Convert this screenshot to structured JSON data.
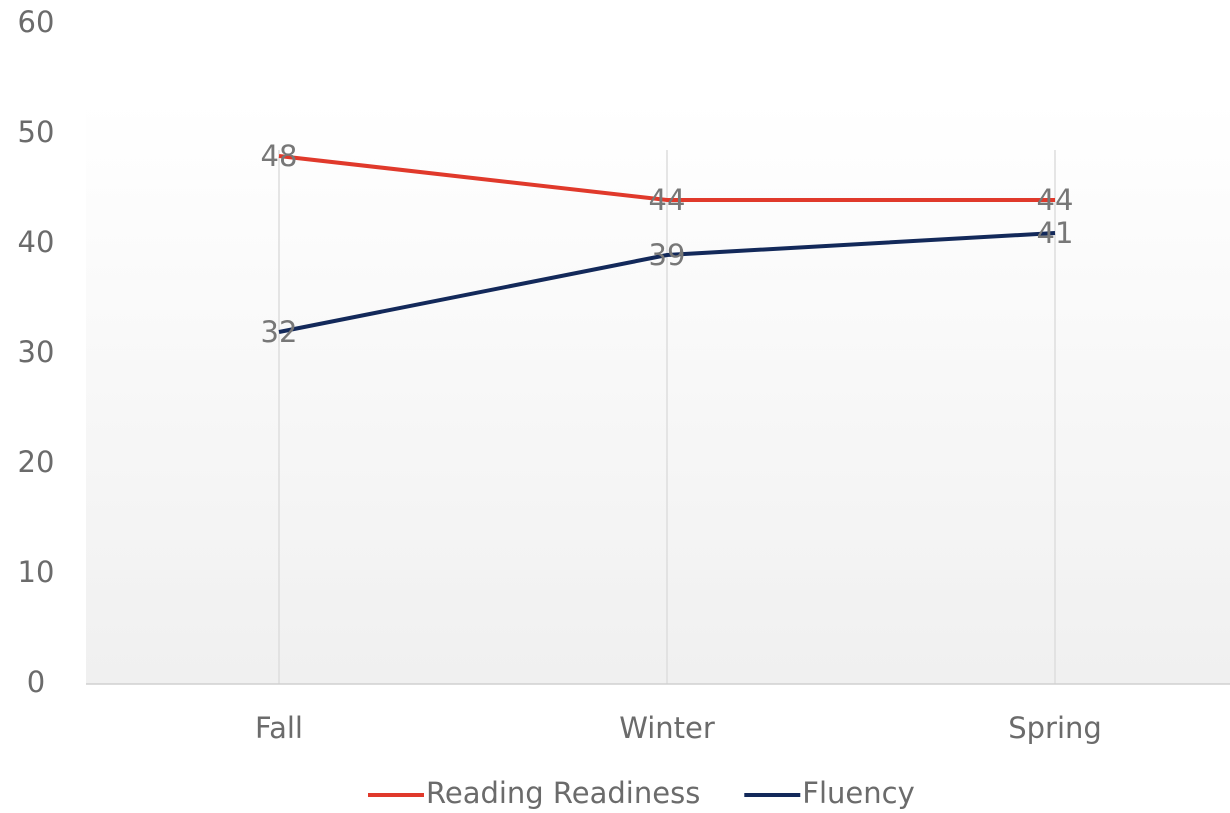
{
  "chart_data": {
    "type": "line",
    "categories": [
      "Fall",
      "Winter",
      "Spring"
    ],
    "series": [
      {
        "name": "Reading Readiness",
        "color": "#e0392b",
        "values": [
          48,
          44,
          44
        ]
      },
      {
        "name": "Fluency",
        "color": "#13295a",
        "values": [
          32,
          39,
          41
        ]
      }
    ],
    "ylim": [
      0,
      60
    ],
    "yticks": [
      0,
      10,
      20,
      30,
      40,
      50,
      60
    ],
    "legend": "bottom"
  }
}
